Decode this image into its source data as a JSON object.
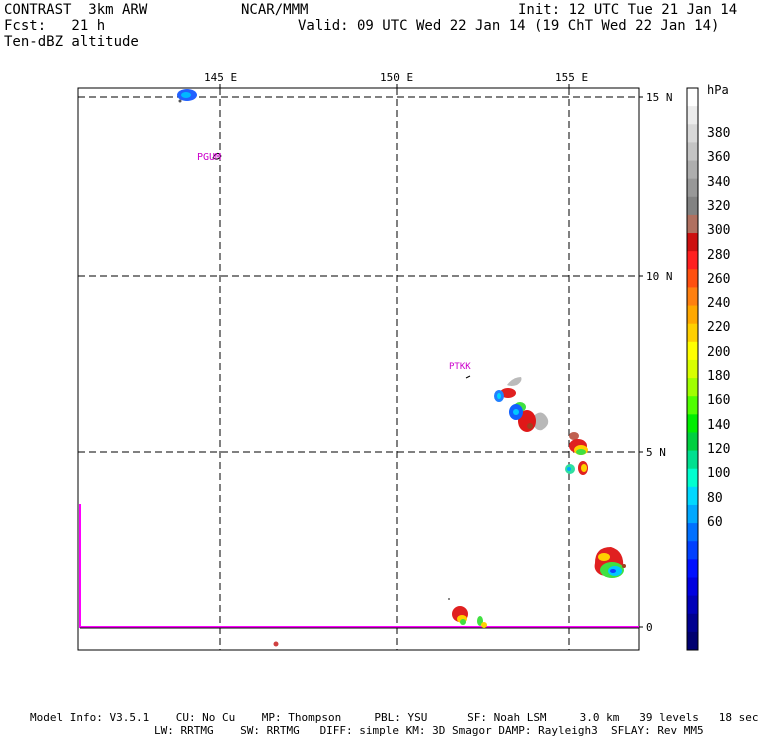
{
  "header": {
    "model": "CONTRAST  3km ARW",
    "fcst": "Fcst:   21 h",
    "field": "Ten-dBZ altitude",
    "center": "NCAR/MMM",
    "init": "Init: 12 UTC Tue 21 Jan 14",
    "valid": "Valid: 09 UTC Wed 22 Jan 14 (19 ChT Wed 22 Jan 14)"
  },
  "map": {
    "lon_labels": [
      "145 E",
      "150 E",
      "155 E"
    ],
    "lat_labels": [
      "15 N",
      "10 N",
      "5 N",
      "0"
    ],
    "stations": [
      {
        "name": "PGUM",
        "color": "#cc00cc"
      },
      {
        "name": "PTKK",
        "color": "#cc00cc"
      }
    ],
    "boundary_color": "#ff00ff"
  },
  "colorbar": {
    "unit": "hPa",
    "ticks": [
      "380",
      "360",
      "340",
      "320",
      "300",
      "280",
      "260",
      "240",
      "220",
      "200",
      "180",
      "160",
      "140",
      "120",
      "100",
      "80",
      "60"
    ],
    "colors": [
      "#ffffff",
      "#ececec",
      "#d8d8d8",
      "#c4c4c4",
      "#aeaeae",
      "#989898",
      "#828282",
      "#b07060",
      "#cc1010",
      "#ff2020",
      "#ff5010",
      "#ff8010",
      "#ffa800",
      "#ffd000",
      "#ffff00",
      "#d8ff00",
      "#a0ff00",
      "#50ff00",
      "#00ee00",
      "#00d040",
      "#00e090",
      "#00ffd0",
      "#00d8ff",
      "#00a8ff",
      "#0070ff",
      "#0040ff",
      "#0010ff",
      "#0000e0",
      "#0000b8",
      "#000090",
      "#000070"
    ]
  },
  "footer": {
    "line1": "Model Info: V3.5.1    CU: No Cu    MP: Thompson     PBL: YSU      SF: Noah LSM     3.0 km   39 levels   18 sec",
    "line2": "LW: RRTMG    SW: RRTMG   DIFF: simple KM: 3D Smagor DAMP: Rayleigh3  SFLAY: Rev MM5"
  }
}
